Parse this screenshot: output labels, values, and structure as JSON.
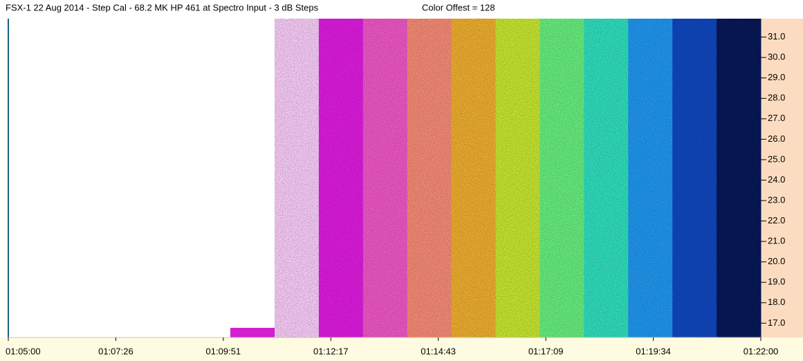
{
  "chart_data": {
    "type": "spectrogram",
    "title": "FSX-1 22 Aug 2014 - Step Cal - 68.2 MK HP 461 at Spectro Input - 3 dB Steps",
    "subtitle": "Color Offest = 128",
    "xticks": [
      "01:05:00",
      "01:07:26",
      "01:09:51",
      "01:12:17",
      "01:14:43",
      "01:17:09",
      "01:19:34",
      "01:22:00"
    ],
    "ylim": [
      16.3,
      31.9
    ],
    "yticks": [
      {
        "value": 17,
        "label": "17.0"
      },
      {
        "value": 18,
        "label": "18.0"
      },
      {
        "value": 19,
        "label": "19.0"
      },
      {
        "value": 20,
        "label": "20.0"
      },
      {
        "value": 21,
        "label": "21.0"
      },
      {
        "value": 22,
        "label": "22.0"
      },
      {
        "value": 23,
        "label": "23.0"
      },
      {
        "value": 24,
        "label": "24.0"
      },
      {
        "value": 25,
        "label": "25.0"
      },
      {
        "value": 26,
        "label": "26.0"
      },
      {
        "value": 27,
        "label": "27.0"
      },
      {
        "value": 28,
        "label": "28.0"
      },
      {
        "value": 29,
        "label": "29.0"
      },
      {
        "value": 30,
        "label": "30.0"
      },
      {
        "value": 31,
        "label": "31.0"
      }
    ],
    "band_colors": [
      "#e040e0",
      "#e01ce0",
      "#f058c8",
      "#f88c78",
      "#f0b030",
      "#c8e830",
      "#68f080",
      "#30e0c0",
      "#2098f0",
      "#1048c0",
      "#081858"
    ]
  }
}
